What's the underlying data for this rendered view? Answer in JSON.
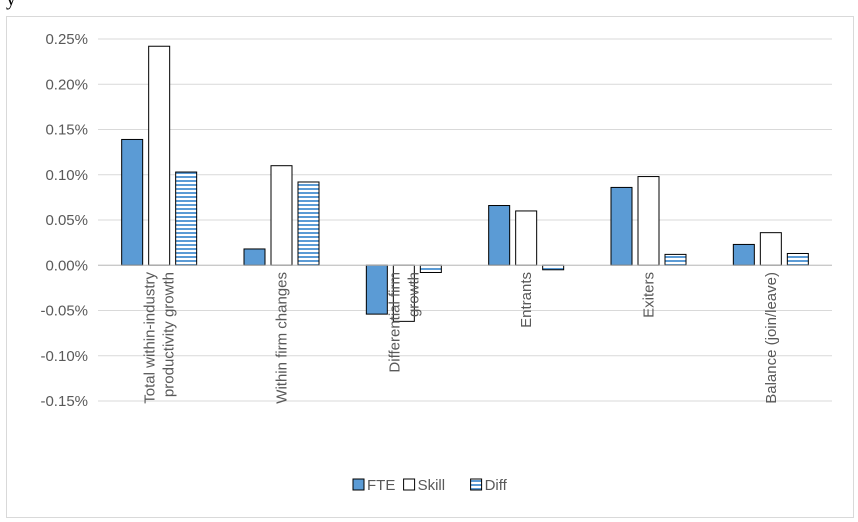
{
  "page": {
    "top_text_fragment": "y"
  },
  "chart_data": {
    "type": "bar",
    "title": "",
    "xlabel": "",
    "ylabel": "",
    "categories": [
      [
        "Total within-industry",
        "productivity growth"
      ],
      [
        "Within firm changes"
      ],
      [
        "Differential firm",
        "growth"
      ],
      [
        "Entrants"
      ],
      [
        "Exiters"
      ],
      [
        "Balance (join/leave)"
      ]
    ],
    "series": [
      {
        "name": "FTE",
        "values": [
          0.00139,
          0.00018,
          -0.00054,
          0.00066,
          0.00086,
          0.00023
        ],
        "color": "#5b9bd5",
        "pattern": "solid"
      },
      {
        "name": "Skill",
        "values": [
          0.00242,
          0.0011,
          -0.00062,
          0.0006,
          0.00098,
          0.00036
        ],
        "color": "#ffffff",
        "pattern": "outline"
      },
      {
        "name": "Diff",
        "values": [
          0.00103,
          0.00092,
          -8e-05,
          -5e-05,
          0.00012,
          0.00013
        ],
        "color": "#5b9bd5",
        "pattern": "horizontal-stripes"
      }
    ],
    "yticks": [
      "0.25%",
      "0.20%",
      "0.15%",
      "0.10%",
      "0.05%",
      "0.00%",
      "-0.05%",
      "-0.10%",
      "-0.15%"
    ],
    "ytick_values": [
      0.0025,
      0.002,
      0.0015,
      0.001,
      0.0005,
      0.0,
      -0.0005,
      -0.001,
      -0.0015
    ],
    "ylim": [
      -0.0015,
      0.0025
    ],
    "grid": true,
    "legend": "bottom"
  }
}
